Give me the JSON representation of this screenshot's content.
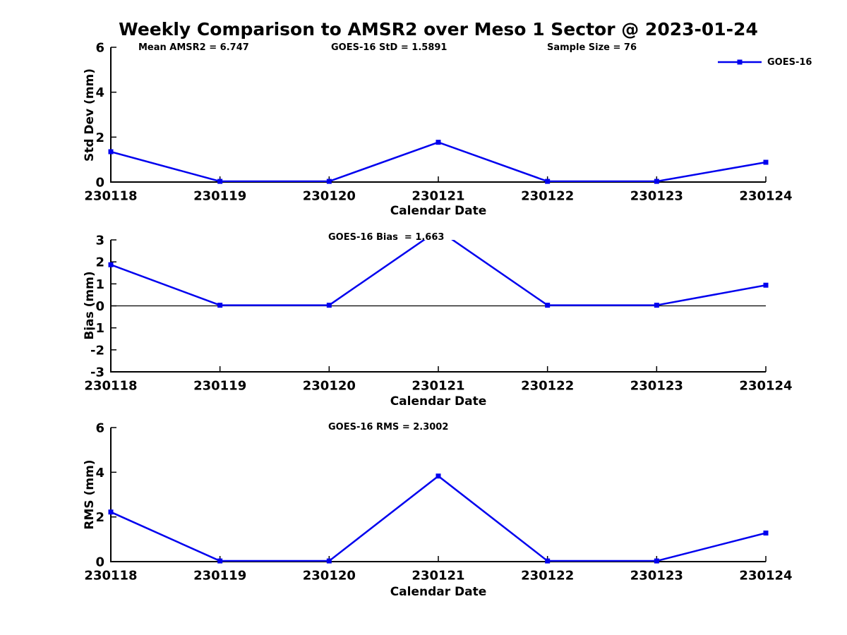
{
  "title": "Weekly Comparison to AMSR2 over Meso 1 Sector @ 2023-01-24",
  "colors": {
    "line": "#0000EE",
    "axis": "#000000",
    "text": "#000000",
    "background": "#FFFFFF"
  },
  "legend": {
    "label": "GOES-16"
  },
  "chart_data": [
    {
      "type": "line",
      "name": "stddev",
      "ylabel": "Std Dev (mm)",
      "xlabel": "Calendar Date",
      "ylim": [
        0,
        6
      ],
      "yticks": [
        0,
        2,
        4,
        6
      ],
      "grid": false,
      "zero_line": false,
      "legend_position": "top-right-outside",
      "categories": [
        "230118",
        "230119",
        "230120",
        "230121",
        "230122",
        "230123",
        "230124"
      ],
      "series": [
        {
          "name": "GOES-16",
          "values": [
            1.35,
            0.03,
            0.03,
            1.77,
            0.03,
            0.03,
            0.88
          ]
        }
      ],
      "annotations": [
        {
          "text": "Mean AMSR2 = 6.747"
        },
        {
          "text": "GOES-16 StD = 1.5891"
        },
        {
          "text": "Sample Size = 76"
        }
      ]
    },
    {
      "type": "line",
      "name": "bias",
      "ylabel": "Bias (mm)",
      "xlabel": "Calendar Date",
      "ylim": [
        -3,
        3
      ],
      "yticks": [
        -3,
        -2,
        -1,
        0,
        1,
        2,
        3
      ],
      "grid": false,
      "zero_line": true,
      "categories": [
        "230118",
        "230119",
        "230120",
        "230121",
        "230122",
        "230123",
        "230124"
      ],
      "series": [
        {
          "name": "GOES-16",
          "values": [
            1.87,
            0.03,
            0.03,
            3.45,
            0.03,
            0.03,
            0.94
          ]
        }
      ],
      "annotations": [
        {
          "text": "GOES-16 Bias  = 1.663"
        }
      ]
    },
    {
      "type": "line",
      "name": "rms",
      "ylabel": "RMS (mm)",
      "xlabel": "Calendar Date",
      "ylim": [
        0,
        6
      ],
      "yticks": [
        0,
        2,
        4,
        6
      ],
      "grid": false,
      "zero_line": false,
      "categories": [
        "230118",
        "230119",
        "230120",
        "230121",
        "230122",
        "230123",
        "230124"
      ],
      "series": [
        {
          "name": "GOES-16",
          "values": [
            2.22,
            0.03,
            0.03,
            3.83,
            0.03,
            0.03,
            1.28
          ]
        }
      ],
      "annotations": [
        {
          "text": "GOES-16 RMS = 2.3002"
        }
      ]
    }
  ]
}
